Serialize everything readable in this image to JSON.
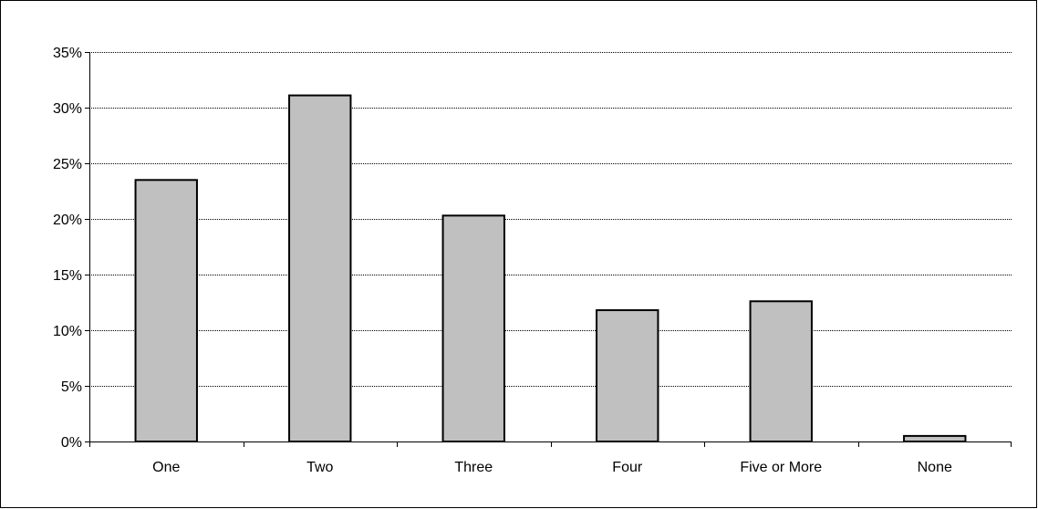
{
  "chart_data": {
    "type": "bar",
    "categories": [
      "One",
      "Two",
      "Three",
      "Four",
      "Five or More",
      "None"
    ],
    "values": [
      23.5,
      31.1,
      20.3,
      11.8,
      12.6,
      0.5
    ],
    "title": "",
    "xlabel": "",
    "ylabel": "",
    "ylim": [
      0,
      35
    ],
    "yticks": [
      0,
      5,
      10,
      15,
      20,
      25,
      30,
      35
    ],
    "ytick_format": "%",
    "grid": true,
    "legend": "none",
    "bar_color": "#c0c0c0",
    "bar_edge_color": "#000000"
  }
}
